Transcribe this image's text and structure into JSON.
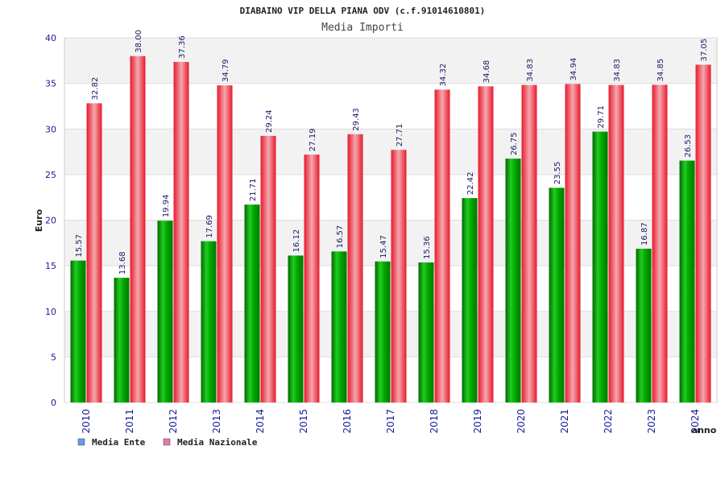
{
  "chart_data": {
    "type": "bar",
    "title": "DIABAINO VIP DELLA PIANA ODV (c.f.91014610801)",
    "subtitle": "Media Importi",
    "xlabel": "anno",
    "ylabel": "Euro",
    "ylim": [
      0,
      40
    ],
    "yticks": [
      0,
      5,
      10,
      15,
      20,
      25,
      30,
      35,
      40
    ],
    "grid": true,
    "legend_position": "bottom-left",
    "categories": [
      "2010",
      "2011",
      "2012",
      "2013",
      "2014",
      "2015",
      "2016",
      "2017",
      "2018",
      "2019",
      "2020",
      "2021",
      "2022",
      "2023",
      "2024"
    ],
    "series": [
      {
        "name": "Media Ente",
        "color": "#00aa00",
        "legend_color": "#5f9ee8",
        "values": [
          15.57,
          13.68,
          19.94,
          17.69,
          21.71,
          16.12,
          16.57,
          15.47,
          15.36,
          22.42,
          26.75,
          23.55,
          29.71,
          16.87,
          26.53
        ],
        "labels": [
          "15.57",
          "13.68",
          "19.94",
          "17.69",
          "21.71",
          "16.12",
          "16.57",
          "15.47",
          "15.36",
          "22.42",
          "26.75",
          "23.55",
          "29.71",
          "16.87",
          "26.53"
        ]
      },
      {
        "name": "Media Nazionale",
        "color": "#e8192c",
        "legend_color": "#e07ab0",
        "values": [
          32.82,
          38.0,
          37.36,
          34.79,
          29.24,
          27.19,
          29.43,
          27.71,
          34.32,
          34.68,
          34.83,
          34.94,
          34.83,
          34.85,
          37.05
        ],
        "labels": [
          "32.82",
          "38.00",
          "37.36",
          "34.79",
          "29.24",
          "27.19",
          "29.43",
          "27.71",
          "34.32",
          "34.68",
          "34.83",
          "34.94",
          "34.83",
          "34.85",
          "37.05"
        ]
      }
    ]
  }
}
